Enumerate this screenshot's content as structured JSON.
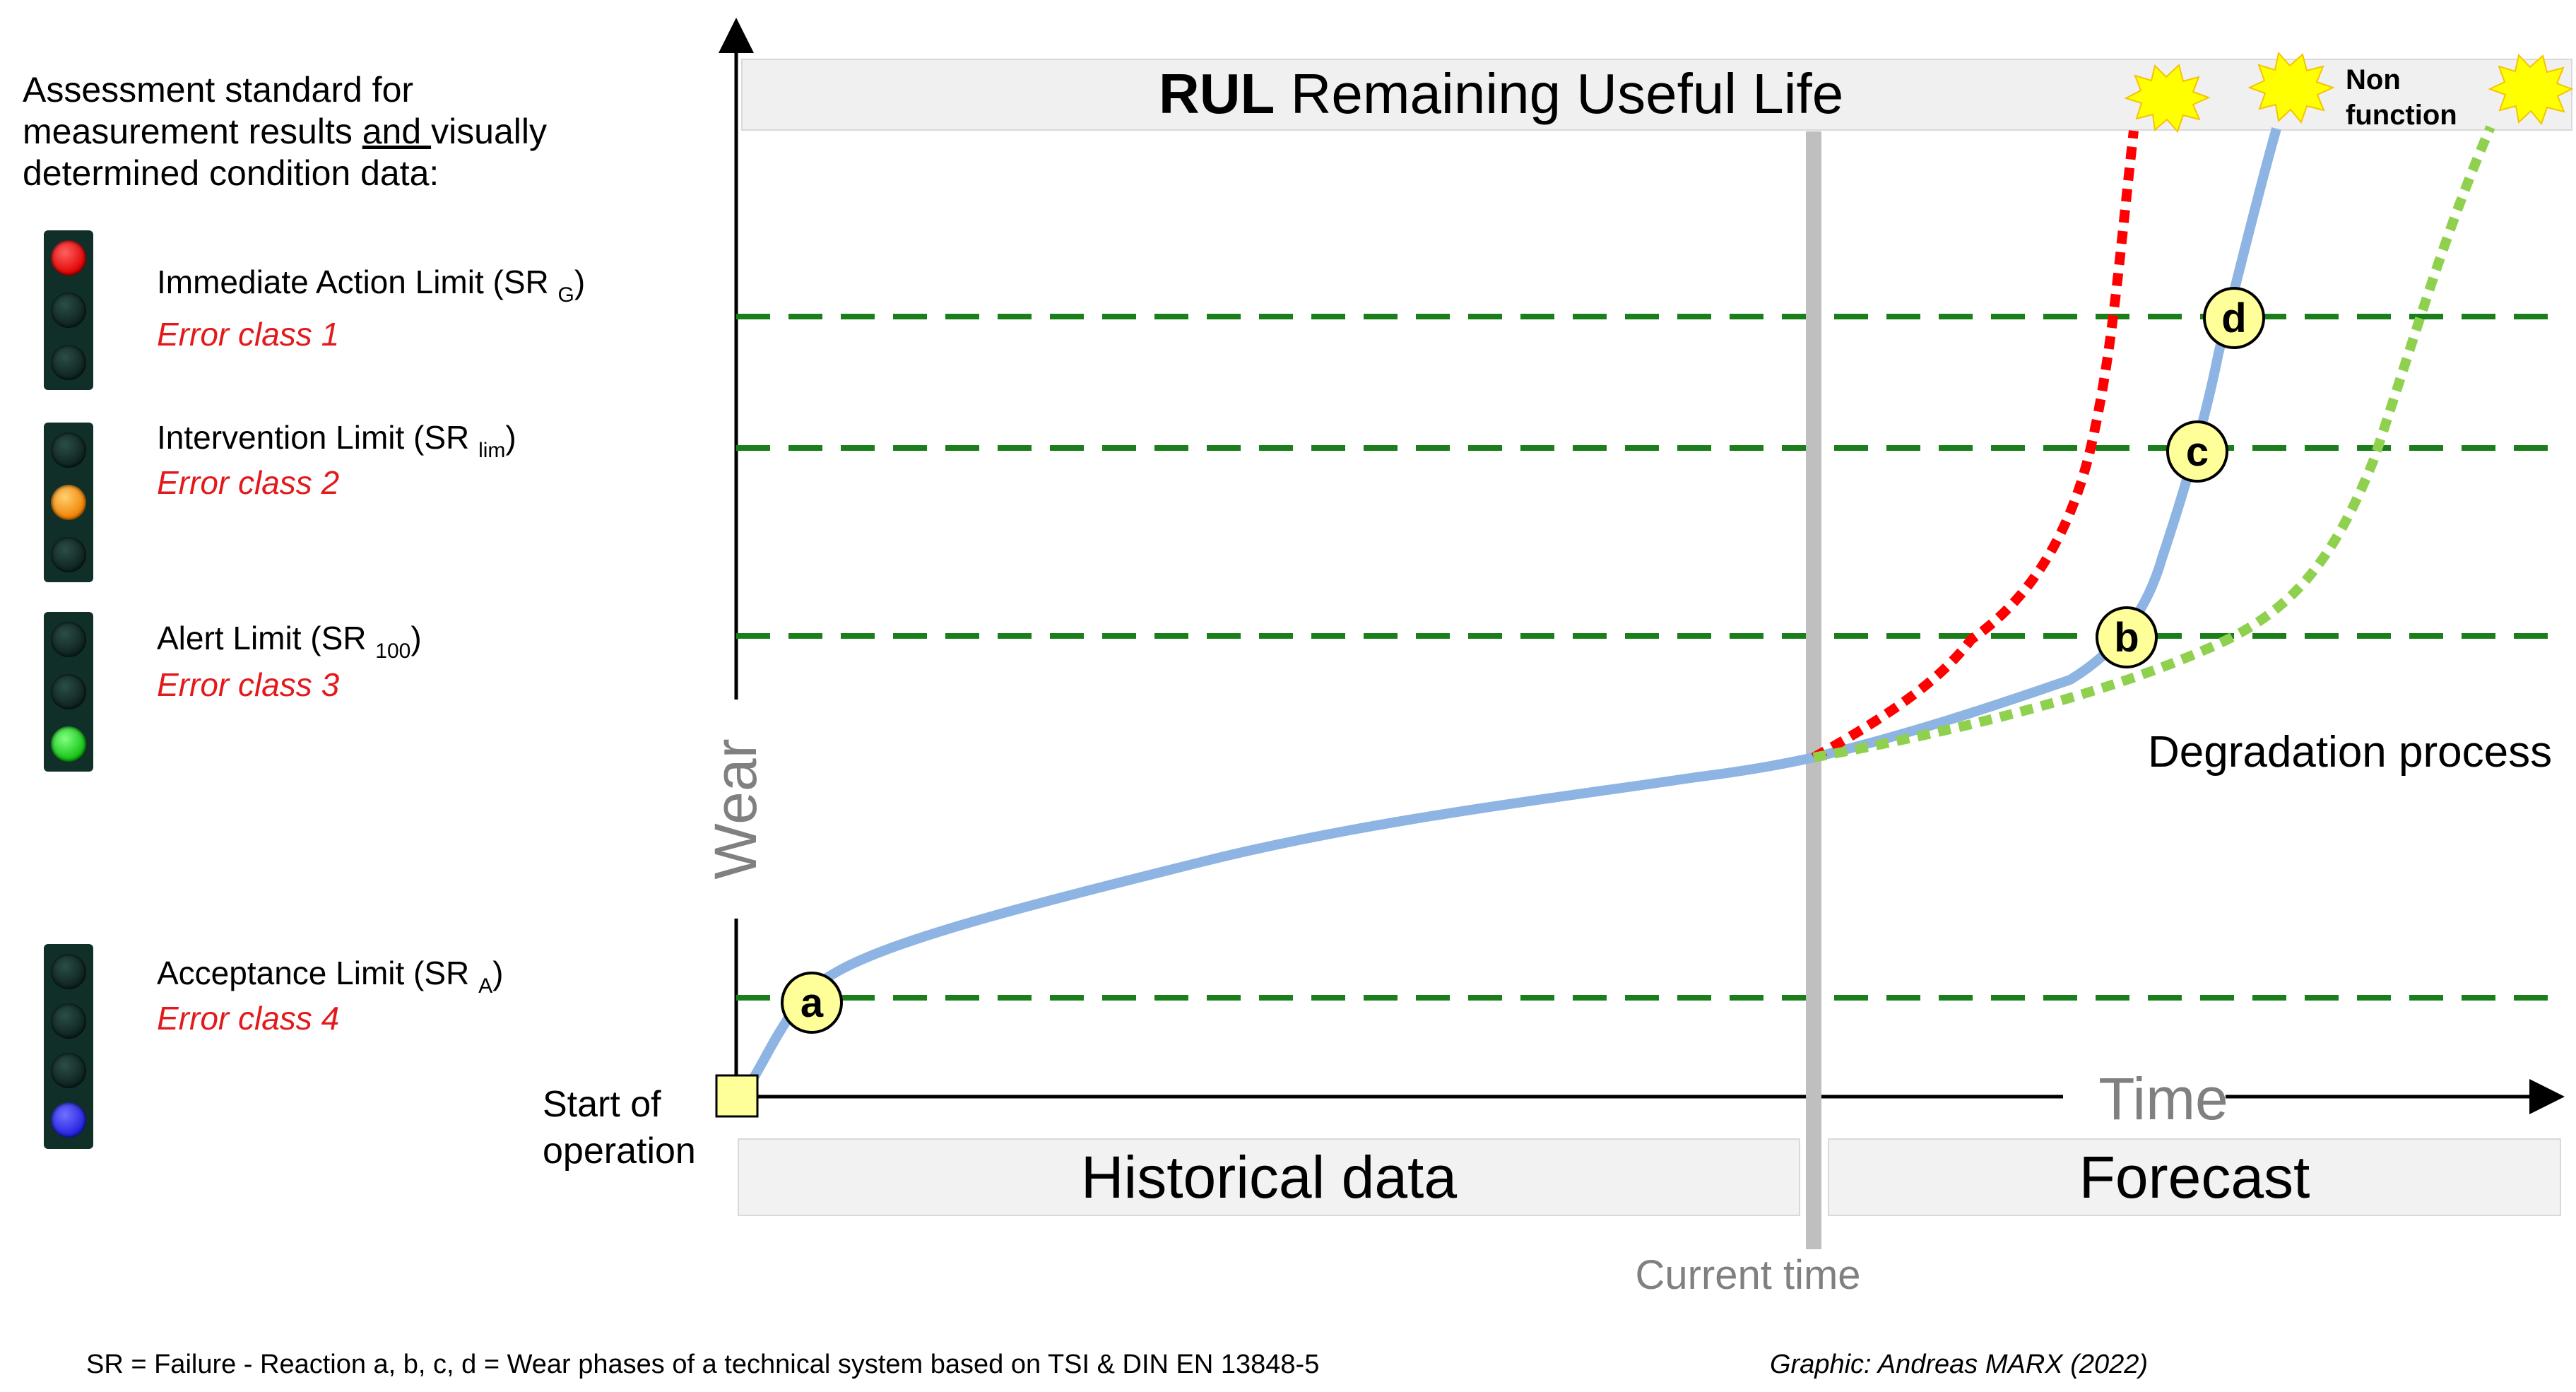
{
  "legend": {
    "heading": [
      "Assessment standard for",
      "measurement results ",
      "and ",
      "visually",
      "determined condition data:"
    ],
    "items": [
      {
        "label": "Immediate Action Limit (SR ",
        "sub": "G",
        "close": ")",
        "error": "Error class 1",
        "lamp": "red"
      },
      {
        "label": "Intervention Limit (SR ",
        "sub": "lim",
        "close": ")",
        "error": "Error class 2",
        "lamp": "amber"
      },
      {
        "label": "Alert Limit (SR ",
        "sub": "100",
        "close": ")",
        "error": "Error class 3",
        "lamp": "green"
      },
      {
        "label": "Acceptance Limit (SR ",
        "sub": "A",
        "close": ")",
        "error": "Error class 4",
        "lamp": "blue"
      }
    ]
  },
  "diagram": {
    "title_bold": "RUL",
    "title_rest": " Remaining Useful Life",
    "y_axis": "Wear",
    "x_axis": "Time",
    "start_label": [
      "Start of",
      "operation"
    ],
    "historical": "Historical data",
    "forecast": "Forecast",
    "current_time": "Current time",
    "degradation": "Degradation process",
    "non_function": [
      "Non",
      "function"
    ],
    "markers": [
      "a",
      "b",
      "c",
      "d"
    ],
    "colors": {
      "actual": "#8db4e2",
      "fast": "#ff0000",
      "slow": "#8fd14f",
      "limit": "#1a7f1a",
      "marker": "#ffff99",
      "current": "#bfbfbf",
      "burst": "#ffff00"
    }
  },
  "footer": {
    "note": "SR = Failure - Reaction a, b, c, d = Wear phases of a technical system based on TSI & DIN EN 13848-5",
    "credit": "Graphic: Andreas MARX (2022)"
  }
}
